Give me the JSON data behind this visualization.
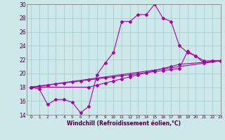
{
  "xlabel": "Windchill (Refroidissement éolien,°C)",
  "background_color": "#cce8e8",
  "grid_color": "#aacece",
  "line_color": "#aa00aa",
  "series1_x": [
    0,
    1,
    2,
    3,
    4,
    5,
    6,
    7,
    8,
    9,
    10,
    11,
    12,
    13,
    14,
    15,
    16,
    17,
    18,
    19,
    20,
    21,
    22,
    23
  ],
  "series1_y": [
    18.0,
    17.7,
    15.5,
    16.2,
    16.2,
    15.8,
    14.3,
    15.2,
    19.8,
    21.5,
    23.0,
    27.5,
    27.5,
    28.5,
    28.5,
    30.0,
    28.0,
    27.5,
    24.0,
    23.0,
    22.5,
    21.5,
    21.8,
    21.8
  ],
  "series2_x": [
    0,
    23
  ],
  "series2_y": [
    18.0,
    21.8
  ],
  "series3_x": [
    0,
    1,
    2,
    3,
    4,
    5,
    6,
    7,
    8,
    9,
    10,
    11,
    12,
    13,
    14,
    15,
    16,
    17,
    18,
    19,
    20,
    21,
    22,
    23
  ],
  "series3_y": [
    18.0,
    18.15,
    18.3,
    18.45,
    18.6,
    18.75,
    18.9,
    19.05,
    19.2,
    19.35,
    19.5,
    19.65,
    19.8,
    19.95,
    20.1,
    20.25,
    20.4,
    20.55,
    20.7,
    23.2,
    22.5,
    21.8,
    21.8,
    21.8
  ],
  "series4_x": [
    0,
    7,
    8,
    9,
    10,
    11,
    12,
    13,
    14,
    15,
    16,
    17,
    18,
    23
  ],
  "series4_y": [
    18.0,
    18.0,
    18.3,
    18.6,
    18.9,
    19.2,
    19.5,
    19.8,
    20.1,
    20.4,
    20.7,
    21.0,
    21.3,
    21.8
  ],
  "ylim": [
    14,
    30
  ],
  "xlim": [
    -0.5,
    23
  ],
  "yticks": [
    14,
    16,
    18,
    20,
    22,
    24,
    26,
    28,
    30
  ],
  "xticks": [
    0,
    1,
    2,
    3,
    4,
    5,
    6,
    7,
    8,
    9,
    10,
    11,
    12,
    13,
    14,
    15,
    16,
    17,
    18,
    19,
    20,
    21,
    22,
    23
  ]
}
